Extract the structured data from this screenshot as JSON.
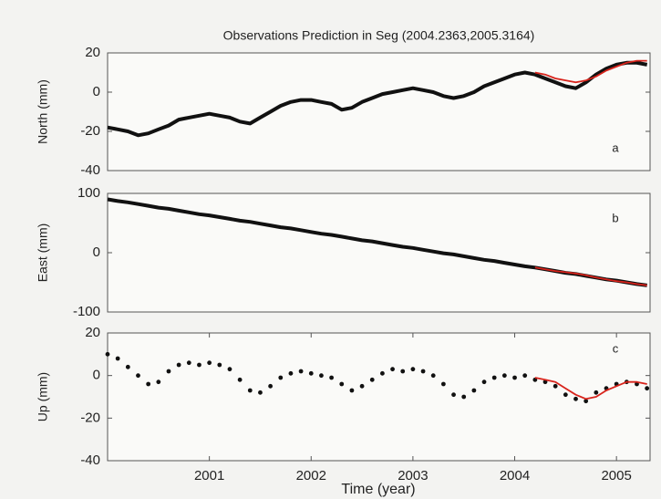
{
  "chart_data": [
    {
      "type": "line",
      "title": "Observations Prediction in Seg  (2004.2363,2005.3164)",
      "ylabel": "North (mm)",
      "annotation": "a",
      "x": [
        2000.0,
        2000.1,
        2000.2,
        2000.3,
        2000.4,
        2000.5,
        2000.6,
        2000.7,
        2000.8,
        2000.9,
        2001.0,
        2001.1,
        2001.2,
        2001.3,
        2001.4,
        2001.5,
        2001.6,
        2001.7,
        2001.8,
        2001.9,
        2002.0,
        2002.1,
        2002.2,
        2002.3,
        2002.4,
        2002.5,
        2002.6,
        2002.7,
        2002.8,
        2002.9,
        2003.0,
        2003.1,
        2003.2,
        2003.3,
        2003.4,
        2003.5,
        2003.6,
        2003.7,
        2003.8,
        2003.9,
        2004.0,
        2004.1,
        2004.2,
        2004.3,
        2004.4,
        2004.5,
        2004.6,
        2004.7,
        2004.8,
        2004.9,
        2005.0,
        2005.1,
        2005.2,
        2005.3
      ],
      "series": [
        {
          "color": "#111111",
          "style": "line",
          "values": [
            -18,
            -19,
            -20,
            -22,
            -21,
            -19,
            -17,
            -14,
            -13,
            -12,
            -11,
            -12,
            -13,
            -15,
            -16,
            -13,
            -10,
            -7,
            -5,
            -4,
            -4,
            -5,
            -6,
            -9,
            -8,
            -5,
            -3,
            -1,
            0,
            1,
            2,
            1,
            0,
            -2,
            -3,
            -2,
            0,
            3,
            5,
            7,
            9,
            10,
            9,
            7,
            5,
            3,
            2,
            5,
            9,
            12,
            14,
            15,
            15,
            14
          ]
        },
        {
          "color": "#d8241c",
          "style": "line",
          "values": [
            null,
            null,
            null,
            null,
            null,
            null,
            null,
            null,
            null,
            null,
            null,
            null,
            null,
            null,
            null,
            null,
            null,
            null,
            null,
            null,
            null,
            null,
            null,
            null,
            null,
            null,
            null,
            null,
            null,
            null,
            null,
            null,
            null,
            null,
            null,
            null,
            null,
            null,
            null,
            null,
            null,
            null,
            10,
            9,
            7,
            6,
            5,
            6,
            8,
            11,
            13,
            15,
            16,
            16
          ]
        }
      ],
      "xlim": [
        2000.0,
        2005.33
      ],
      "ylim": [
        -40,
        20
      ],
      "yticks": [
        -40,
        -20,
        0,
        20
      ]
    },
    {
      "type": "line",
      "ylabel": "East (mm)",
      "annotation": "b",
      "x": [
        2000.0,
        2000.1,
        2000.2,
        2000.3,
        2000.4,
        2000.5,
        2000.6,
        2000.7,
        2000.8,
        2000.9,
        2001.0,
        2001.1,
        2001.2,
        2001.3,
        2001.4,
        2001.5,
        2001.6,
        2001.7,
        2001.8,
        2001.9,
        2002.0,
        2002.1,
        2002.2,
        2002.3,
        2002.4,
        2002.5,
        2002.6,
        2002.7,
        2002.8,
        2002.9,
        2003.0,
        2003.1,
        2003.2,
        2003.3,
        2003.4,
        2003.5,
        2003.6,
        2003.7,
        2003.8,
        2003.9,
        2004.0,
        2004.1,
        2004.2,
        2004.3,
        2004.4,
        2004.5,
        2004.6,
        2004.7,
        2004.8,
        2004.9,
        2005.0,
        2005.1,
        2005.2,
        2005.3
      ],
      "series": [
        {
          "color": "#111111",
          "style": "line",
          "values": [
            90,
            87,
            85,
            82,
            79,
            76,
            74,
            71,
            68,
            65,
            63,
            60,
            57,
            54,
            52,
            49,
            46,
            43,
            41,
            38,
            35,
            32,
            30,
            27,
            24,
            21,
            19,
            16,
            13,
            10,
            8,
            5,
            2,
            -1,
            -3,
            -6,
            -9,
            -12,
            -14,
            -17,
            -20,
            -23,
            -25,
            -28,
            -31,
            -34,
            -36,
            -39,
            -42,
            -45,
            -47,
            -50,
            -53,
            -55
          ]
        },
        {
          "color": "#d8241c",
          "style": "line",
          "values": [
            null,
            null,
            null,
            null,
            null,
            null,
            null,
            null,
            null,
            null,
            null,
            null,
            null,
            null,
            null,
            null,
            null,
            null,
            null,
            null,
            null,
            null,
            null,
            null,
            null,
            null,
            null,
            null,
            null,
            null,
            null,
            null,
            null,
            null,
            null,
            null,
            null,
            null,
            null,
            null,
            null,
            null,
            -25,
            -28,
            -31,
            -33,
            -35,
            -38,
            -42,
            -45,
            -48,
            -50,
            -53,
            -55
          ]
        }
      ],
      "xlim": [
        2000.0,
        2005.33
      ],
      "ylim": [
        -100,
        100
      ],
      "yticks": [
        -100,
        0,
        100
      ]
    },
    {
      "type": "line",
      "ylabel": "Up (mm)",
      "xlabel": "Time (year)",
      "annotation": "c",
      "x": [
        2000.0,
        2000.1,
        2000.2,
        2000.3,
        2000.4,
        2000.5,
        2000.6,
        2000.7,
        2000.8,
        2000.9,
        2001.0,
        2001.1,
        2001.2,
        2001.3,
        2001.4,
        2001.5,
        2001.6,
        2001.7,
        2001.8,
        2001.9,
        2002.0,
        2002.1,
        2002.2,
        2002.3,
        2002.4,
        2002.5,
        2002.6,
        2002.7,
        2002.8,
        2002.9,
        2003.0,
        2003.1,
        2003.2,
        2003.3,
        2003.4,
        2003.5,
        2003.6,
        2003.7,
        2003.8,
        2003.9,
        2004.0,
        2004.1,
        2004.2,
        2004.3,
        2004.4,
        2004.5,
        2004.6,
        2004.7,
        2004.8,
        2004.9,
        2005.0,
        2005.1,
        2005.2,
        2005.3
      ],
      "series": [
        {
          "color": "#111111",
          "style": "points",
          "values": [
            10,
            8,
            4,
            0,
            -4,
            -3,
            2,
            5,
            6,
            5,
            6,
            5,
            3,
            -2,
            -7,
            -8,
            -5,
            -1,
            1,
            2,
            1,
            0,
            -1,
            -4,
            -7,
            -5,
            -2,
            1,
            3,
            2,
            3,
            2,
            0,
            -4,
            -9,
            -10,
            -7,
            -3,
            -1,
            0,
            -1,
            0,
            -2,
            -3,
            -5,
            -9,
            -11,
            -12,
            -8,
            -6,
            -4,
            -3,
            -4,
            -6
          ]
        },
        {
          "color": "#d8241c",
          "style": "line",
          "values": [
            null,
            null,
            null,
            null,
            null,
            null,
            null,
            null,
            null,
            null,
            null,
            null,
            null,
            null,
            null,
            null,
            null,
            null,
            null,
            null,
            null,
            null,
            null,
            null,
            null,
            null,
            null,
            null,
            null,
            null,
            null,
            null,
            null,
            null,
            null,
            null,
            null,
            null,
            null,
            null,
            null,
            null,
            -1,
            -2,
            -3,
            -6,
            -9,
            -11,
            -10,
            -7,
            -5,
            -3,
            -3,
            -4
          ]
        }
      ],
      "xlim": [
        2000.0,
        2005.33
      ],
      "ylim": [
        -40,
        20
      ],
      "yticks": [
        -40,
        -20,
        0,
        20
      ],
      "xticks": [
        2001,
        2002,
        2003,
        2004,
        2005
      ]
    }
  ]
}
